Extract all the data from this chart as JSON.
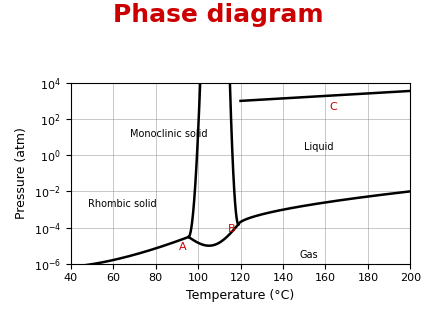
{
  "title": "Phase diagram",
  "title_color": "#cc0000",
  "title_fontsize": 18,
  "xlabel": "Temperature (°C)",
  "ylabel": "Pressure (atm)",
  "xlim": [
    40,
    200
  ],
  "ylim_log": [
    -6,
    4
  ],
  "xticks": [
    40,
    60,
    80,
    100,
    120,
    140,
    160,
    180,
    200
  ],
  "background_color": "#ffffff",
  "triple_A": [
    95.5,
    3e-05
  ],
  "triple_B": [
    119.0,
    0.00015
  ],
  "lw": 1.8
}
